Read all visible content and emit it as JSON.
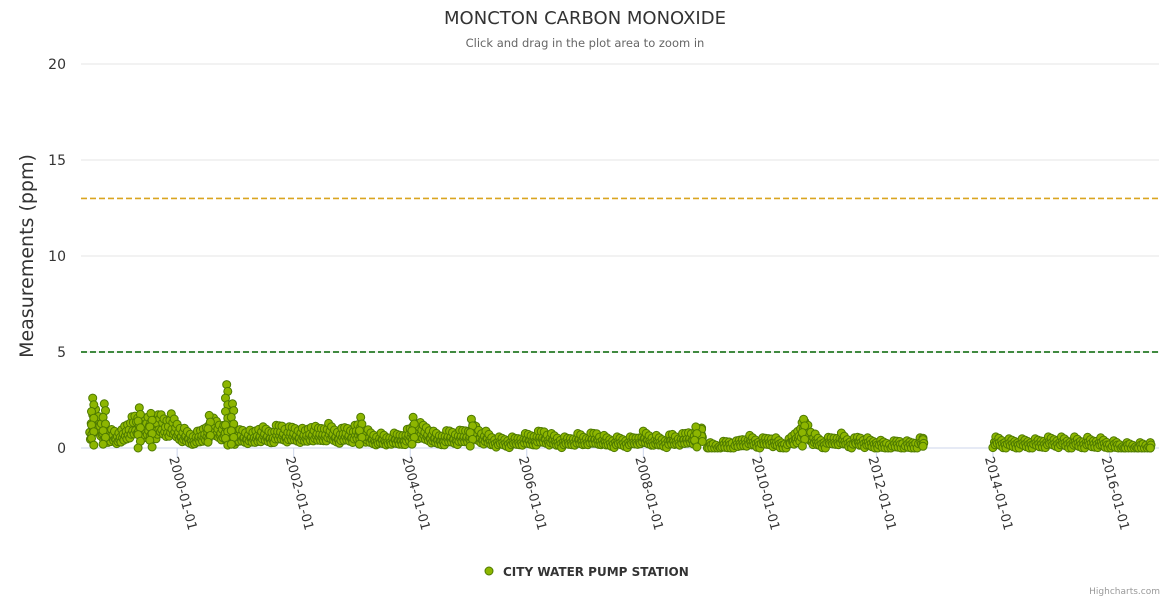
{
  "chart_data": {
    "type": "scatter",
    "title": "MONCTON CARBON MONOXIDE",
    "subtitle": "Click and drag in the plot area to zoom in",
    "ylabel": "Measurements (ppm)",
    "xlabel": "",
    "ylim": [
      0,
      20
    ],
    "yticks": [
      0,
      5,
      10,
      15,
      20
    ],
    "xlim": [
      1998.35,
      2016.85
    ],
    "xticks": [
      {
        "value": 2000,
        "label": "2000-01-01"
      },
      {
        "value": 2002,
        "label": "2002-01-01"
      },
      {
        "value": 2004,
        "label": "2004-01-01"
      },
      {
        "value": 2006,
        "label": "2006-01-01"
      },
      {
        "value": 2008,
        "label": "2008-01-01"
      },
      {
        "value": 2010,
        "label": "2010-01-01"
      },
      {
        "value": 2012,
        "label": "2012-01-01"
      },
      {
        "value": 2014,
        "label": "2014-01-01"
      },
      {
        "value": 2016,
        "label": "2016-01-01"
      }
    ],
    "grid": true,
    "legend_position": "bottom-center",
    "plot_lines": [
      {
        "value": 13,
        "color": "#DAA520",
        "style": "dashed"
      },
      {
        "value": 5,
        "color": "#006400",
        "style": "dashed"
      }
    ],
    "series": [
      {
        "name": "CITY WATER PUMP STATION",
        "color": "#8DB600",
        "stroke": "#4E7A00",
        "segments": [
          {
            "x": [
              1998.5,
              1998.6,
              1998.7,
              1998.8,
              1998.9,
              1999.0,
              1999.1,
              1999.2,
              1999.3,
              1999.4,
              1999.5,
              1999.6,
              1999.7,
              1999.8,
              1999.9,
              2000.0,
              2000.1,
              2000.2,
              2000.3,
              2000.4,
              2000.5,
              2000.6,
              2000.7,
              2000.8,
              2000.9,
              2001.0,
              2001.1,
              2001.2,
              2001.3,
              2001.4,
              2001.5,
              2001.6,
              2001.7,
              2001.8,
              2001.9,
              2002.0,
              2002.1,
              2002.2,
              2002.3,
              2002.4,
              2002.5,
              2002.6,
              2002.7,
              2002.8,
              2002.9,
              2003.0,
              2003.1,
              2003.2,
              2003.3,
              2003.4,
              2003.5,
              2003.6,
              2003.7,
              2003.8,
              2003.9,
              2004.0,
              2004.1,
              2004.2,
              2004.3,
              2004.4,
              2004.5,
              2004.6,
              2004.7,
              2004.8,
              2004.9,
              2005.0,
              2005.1,
              2005.2,
              2005.3,
              2005.4,
              2005.5,
              2005.6,
              2005.7,
              2005.8,
              2005.9,
              2006.0,
              2006.1,
              2006.2,
              2006.3,
              2006.4,
              2006.5,
              2006.6,
              2006.7,
              2006.8,
              2006.9,
              2007.0,
              2007.1,
              2007.2,
              2007.3,
              2007.4,
              2007.5,
              2007.6,
              2007.7,
              2007.8,
              2007.9,
              2008.0,
              2008.1,
              2008.2,
              2008.3,
              2008.4,
              2008.5,
              2008.6,
              2008.7,
              2008.8,
              2008.9,
              2009.0
            ],
            "y": [
              1.1,
              1.8,
              1.2,
              0.6,
              0.9,
              0.5,
              1.0,
              1.3,
              1.5,
              1.2,
              1.4,
              1.0,
              1.6,
              1.3,
              1.5,
              1.1,
              0.8,
              0.6,
              0.5,
              0.7,
              1.0,
              1.4,
              1.2,
              0.9,
              0.7,
              0.6,
              0.8,
              0.7,
              0.6,
              0.9,
              0.8,
              0.7,
              0.9,
              1.0,
              0.8,
              0.9,
              0.8,
              0.7,
              1.0,
              0.8,
              0.9,
              1.0,
              0.8,
              0.7,
              0.9,
              0.8,
              1.0,
              0.9,
              0.6,
              0.5,
              0.5,
              0.4,
              0.5,
              0.5,
              0.6,
              0.8,
              1.2,
              1.0,
              0.9,
              0.6,
              0.5,
              0.6,
              0.7,
              0.6,
              0.7,
              0.8,
              1.0,
              0.7,
              0.6,
              0.4,
              0.3,
              0.3,
              0.3,
              0.3,
              0.4,
              0.5,
              0.5,
              0.6,
              0.7,
              0.5,
              0.4,
              0.3,
              0.3,
              0.4,
              0.5,
              0.4,
              0.5,
              0.6,
              0.4,
              0.3,
              0.3,
              0.3,
              0.3,
              0.3,
              0.4,
              0.6,
              0.5,
              0.4,
              0.3,
              0.3,
              0.5,
              0.4,
              0.5,
              0.7,
              0.6,
              0.9
            ]
          },
          {
            "x": [
              2009.1,
              2009.2,
              2009.3,
              2009.4,
              2009.5,
              2009.6,
              2009.7,
              2009.8,
              2009.9,
              2010.0,
              2010.1,
              2010.2,
              2010.3,
              2010.4,
              2010.5,
              2010.6,
              2010.7,
              2010.8,
              2010.9,
              2011.0,
              2011.1,
              2011.2,
              2011.3,
              2011.4,
              2011.5,
              2011.6,
              2011.7,
              2011.8,
              2011.9,
              2012.0,
              2012.1,
              2012.2,
              2012.3,
              2012.4,
              2012.5,
              2012.6,
              2012.7,
              2012.8
            ],
            "y": [
              0.0,
              0.0,
              0.0,
              0.1,
              0.2,
              0.1,
              0.3,
              0.4,
              0.3,
              0.2,
              0.3,
              0.4,
              0.2,
              0.1,
              0.2,
              0.6,
              1.0,
              1.2,
              0.6,
              0.3,
              0.2,
              0.3,
              0.4,
              0.5,
              0.3,
              0.2,
              0.4,
              0.3,
              0.2,
              0.2,
              0.1,
              0.1,
              0.1,
              0.2,
              0.1,
              0.1,
              0.2,
              0.3
            ]
          },
          {
            "x": [
              2014.0,
              2014.1,
              2014.2,
              2014.3,
              2014.4,
              2014.5,
              2014.6,
              2014.7,
              2014.8,
              2014.9,
              2015.0,
              2015.1,
              2015.2,
              2015.3,
              2015.4,
              2015.5,
              2015.6,
              2015.7,
              2015.8,
              2015.9,
              2016.0,
              2016.1,
              2016.2,
              2016.3,
              2016.4,
              2016.5,
              2016.6,
              2016.7
            ],
            "y": [
              0.3,
              0.3,
              0.2,
              0.2,
              0.2,
              0.2,
              0.2,
              0.2,
              0.2,
              0.3,
              0.3,
              0.3,
              0.3,
              0.2,
              0.3,
              0.2,
              0.3,
              0.2,
              0.3,
              0.2,
              0.1,
              0.1,
              0.0,
              0.0,
              0.0,
              0.0,
              0.0,
              0.0
            ]
          }
        ],
        "peaks": [
          {
            "x": 1998.55,
            "y": 2.6
          },
          {
            "x": 1998.75,
            "y": 2.3
          },
          {
            "x": 1999.35,
            "y": 2.1
          },
          {
            "x": 1999.55,
            "y": 1.8
          },
          {
            "x": 2000.55,
            "y": 1.7
          },
          {
            "x": 2000.85,
            "y": 3.3
          },
          {
            "x": 2000.95,
            "y": 2.3
          },
          {
            "x": 2003.15,
            "y": 1.6
          },
          {
            "x": 2004.05,
            "y": 1.6
          },
          {
            "x": 2005.05,
            "y": 1.5
          },
          {
            "x": 2010.75,
            "y": 1.5
          },
          {
            "x": 2008.9,
            "y": 1.1
          }
        ]
      }
    ]
  },
  "credits": "Highcharts.com"
}
